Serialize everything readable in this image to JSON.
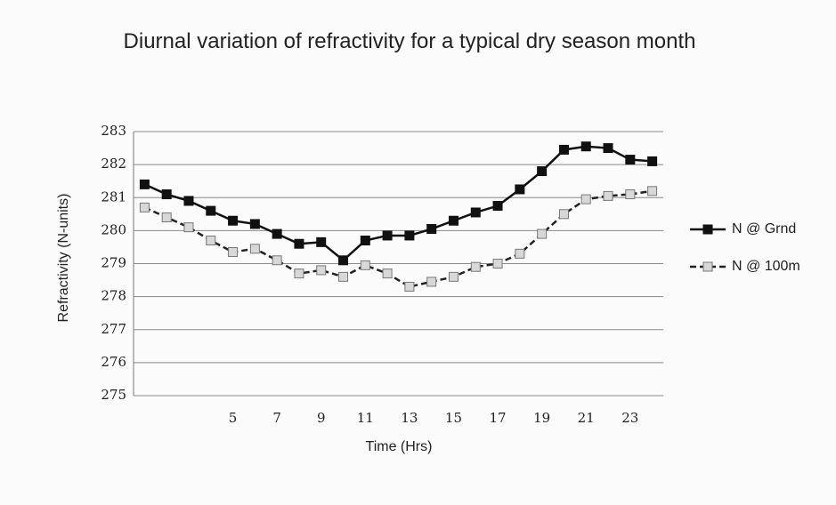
{
  "chart_data": {
    "type": "line",
    "title": "Diurnal variation of refractivity for a typical dry season month",
    "x_label": "Time (Hrs)",
    "y_label": "Refractivity (N-units)",
    "categories": [
      null,
      null,
      null,
      null,
      "5",
      null,
      "7",
      null,
      "9",
      null,
      "11",
      null,
      "13",
      null,
      "15",
      null,
      "17",
      null,
      "19",
      null,
      "21",
      null,
      "23",
      null
    ],
    "series": [
      {
        "name": "N @ Grnd",
        "color": "#111111",
        "dash": false,
        "values": [
          281.4,
          281.1,
          280.9,
          280.6,
          280.3,
          280.2,
          279.9,
          279.6,
          279.65,
          279.1,
          279.7,
          279.85,
          279.85,
          280.05,
          280.3,
          280.55,
          280.75,
          281.25,
          281.8,
          282.45,
          282.55,
          282.5,
          282.15,
          282.1
        ]
      },
      {
        "name": "N @ 100m",
        "color": "#9a9a9a",
        "dash": true,
        "values": [
          280.7,
          280.4,
          280.1,
          279.7,
          279.35,
          279.45,
          279.1,
          278.7,
          278.8,
          278.6,
          278.95,
          278.7,
          278.3,
          278.45,
          278.6,
          278.9,
          279.0,
          279.3,
          279.9,
          280.5,
          280.95,
          281.05,
          281.1,
          281.2
        ]
      }
    ],
    "ylim": [
      275,
      283
    ],
    "yticks": [
      275,
      276,
      277,
      278,
      279,
      280,
      281,
      282,
      283
    ],
    "grid": true,
    "legend": "right"
  }
}
